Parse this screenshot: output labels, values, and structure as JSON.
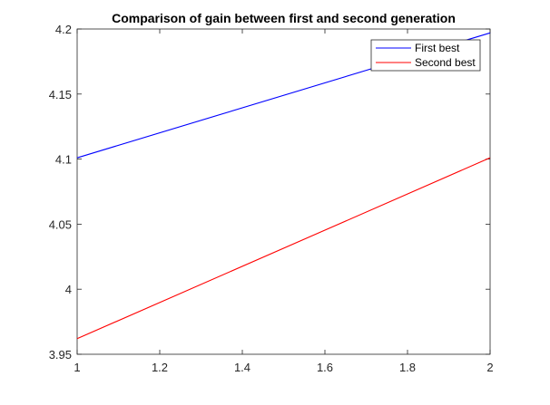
{
  "chart_data": {
    "type": "line",
    "title": "Comparison of gain between first and second generation",
    "xlabel": "",
    "ylabel": "",
    "xlim": [
      1,
      2
    ],
    "ylim": [
      3.95,
      4.2
    ],
    "x_ticks": [
      1,
      1.2,
      1.4,
      1.6,
      1.8,
      2
    ],
    "x_tick_labels": [
      "1",
      "1.2",
      "1.4",
      "1.6",
      "1.8",
      "2"
    ],
    "y_ticks": [
      3.95,
      4,
      4.05,
      4.1,
      4.15,
      4.2
    ],
    "y_tick_labels": [
      "3.95",
      "4",
      "4.05",
      "4.1",
      "4.15",
      "4.2"
    ],
    "grid": false,
    "legend_position": "top-right",
    "series": [
      {
        "name": "First best",
        "color": "#0000ff",
        "x": [
          1,
          2
        ],
        "y": [
          4.101,
          4.197
        ]
      },
      {
        "name": "Second best",
        "color": "#ff0000",
        "x": [
          1,
          2
        ],
        "y": [
          3.962,
          4.101
        ]
      }
    ]
  }
}
